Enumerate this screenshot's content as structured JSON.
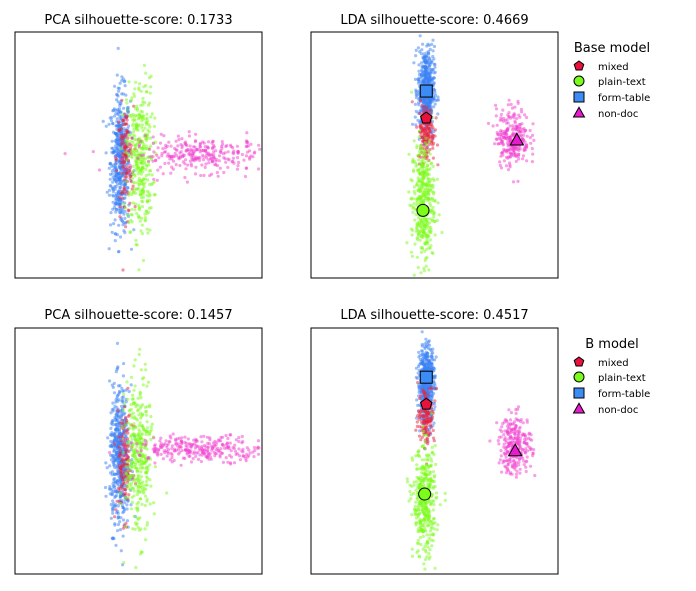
{
  "chart_data": [
    {
      "type": "scatter",
      "title": "PCA  silhouette-score: 0.1733",
      "xlim": [
        -1.0,
        2.0
      ],
      "ylim": [
        -1.0,
        1.0
      ],
      "grid": false,
      "series": [
        {
          "class": "form-table",
          "color": "#3b82f6",
          "center": [
            0.28,
            -0.05
          ],
          "spread": [
            0.06,
            0.28
          ],
          "count": 500
        },
        {
          "class": "mixed",
          "color": "#e8233f",
          "center": [
            0.34,
            -0.05
          ],
          "spread": [
            0.05,
            0.22
          ],
          "count": 120
        },
        {
          "class": "plain-text",
          "color": "#7cfc1a",
          "center": [
            0.52,
            -0.02
          ],
          "spread": [
            0.08,
            0.32
          ],
          "count": 350
        },
        {
          "class": "non-doc",
          "color": "#f23fcf",
          "center": [
            1.3,
            0.0
          ],
          "spread": [
            0.45,
            0.07
          ],
          "count": 300
        }
      ]
    },
    {
      "type": "scatter",
      "title": "LDA  silhouette-score: 0.4669",
      "xlim": [
        -1.0,
        2.0
      ],
      "ylim": [
        -1.0,
        1.0
      ],
      "grid": false,
      "legend": {
        "title": "Base model",
        "placement": "right",
        "entries": [
          {
            "label": "mixed",
            "marker": "pentagon",
            "color": "#e8123c"
          },
          {
            "label": "plain-text",
            "color": "#7cfc1a",
            "marker": "circle"
          },
          {
            "label": "form-table",
            "color": "#3b8cf5",
            "marker": "square"
          },
          {
            "label": "non-doc",
            "color": "#e81ad0",
            "marker": "triangle"
          }
        ]
      },
      "series": [
        {
          "class": "form-table",
          "color": "#3b82f6",
          "center": [
            0.4,
            0.52
          ],
          "spread": [
            0.05,
            0.18
          ],
          "count": 500,
          "centroid": [
            0.4,
            0.52
          ]
        },
        {
          "class": "mixed",
          "color": "#e8233f",
          "center": [
            0.4,
            0.18
          ],
          "spread": [
            0.05,
            0.12
          ],
          "count": 150,
          "centroid": [
            0.4,
            0.3
          ]
        },
        {
          "class": "plain-text",
          "color": "#7cfc1a",
          "center": [
            0.36,
            -0.38
          ],
          "spread": [
            0.07,
            0.25
          ],
          "count": 400,
          "centroid": [
            0.36,
            -0.45
          ]
        },
        {
          "class": "non-doc",
          "color": "#f23fcf",
          "center": [
            1.45,
            0.15
          ],
          "spread": [
            0.1,
            0.12
          ],
          "count": 260,
          "centroid": [
            1.5,
            0.12
          ]
        }
      ]
    },
    {
      "type": "scatter",
      "title": "PCA  silhouette-score: 0.1457",
      "xlim": [
        -1.0,
        2.0
      ],
      "ylim": [
        -1.0,
        1.0
      ],
      "grid": false,
      "series": [
        {
          "class": "form-table",
          "color": "#3b82f6",
          "center": [
            0.27,
            -0.05
          ],
          "spread": [
            0.06,
            0.28
          ],
          "count": 500
        },
        {
          "class": "mixed",
          "color": "#e8233f",
          "center": [
            0.33,
            -0.1
          ],
          "spread": [
            0.05,
            0.22
          ],
          "count": 120
        },
        {
          "class": "plain-text",
          "color": "#7cfc1a",
          "center": [
            0.5,
            -0.05
          ],
          "spread": [
            0.08,
            0.32
          ],
          "count": 350
        },
        {
          "class": "non-doc",
          "color": "#f23fcf",
          "center": [
            1.3,
            0.02
          ],
          "spread": [
            0.45,
            0.05
          ],
          "count": 300
        }
      ]
    },
    {
      "type": "scatter",
      "title": "LDA  silhouette-score: 0.4517",
      "xlim": [
        -1.0,
        2.0
      ],
      "ylim": [
        -1.0,
        1.0
      ],
      "grid": false,
      "legend": {
        "title": "B model",
        "placement": "right",
        "entries": [
          {
            "label": "mixed",
            "marker": "pentagon",
            "color": "#e8123c"
          },
          {
            "label": "plain-text",
            "color": "#7cfc1a",
            "marker": "circle"
          },
          {
            "label": "form-table",
            "color": "#3b8cf5",
            "marker": "square"
          },
          {
            "label": "non-doc",
            "color": "#e81ad0",
            "marker": "triangle"
          }
        ]
      },
      "series": [
        {
          "class": "form-table",
          "color": "#3b82f6",
          "center": [
            0.4,
            0.55
          ],
          "spread": [
            0.05,
            0.16
          ],
          "count": 500,
          "centroid": [
            0.4,
            0.6
          ]
        },
        {
          "class": "mixed",
          "color": "#e8233f",
          "center": [
            0.4,
            0.3
          ],
          "spread": [
            0.05,
            0.12
          ],
          "count": 150,
          "centroid": [
            0.4,
            0.38
          ]
        },
        {
          "class": "plain-text",
          "color": "#7cfc1a",
          "center": [
            0.38,
            -0.42
          ],
          "spread": [
            0.07,
            0.22
          ],
          "count": 400,
          "centroid": [
            0.38,
            -0.35
          ]
        },
        {
          "class": "non-doc",
          "color": "#f23fcf",
          "center": [
            1.48,
            0.05
          ],
          "spread": [
            0.1,
            0.12
          ],
          "count": 260,
          "centroid": [
            1.48,
            0.0
          ]
        }
      ]
    }
  ]
}
